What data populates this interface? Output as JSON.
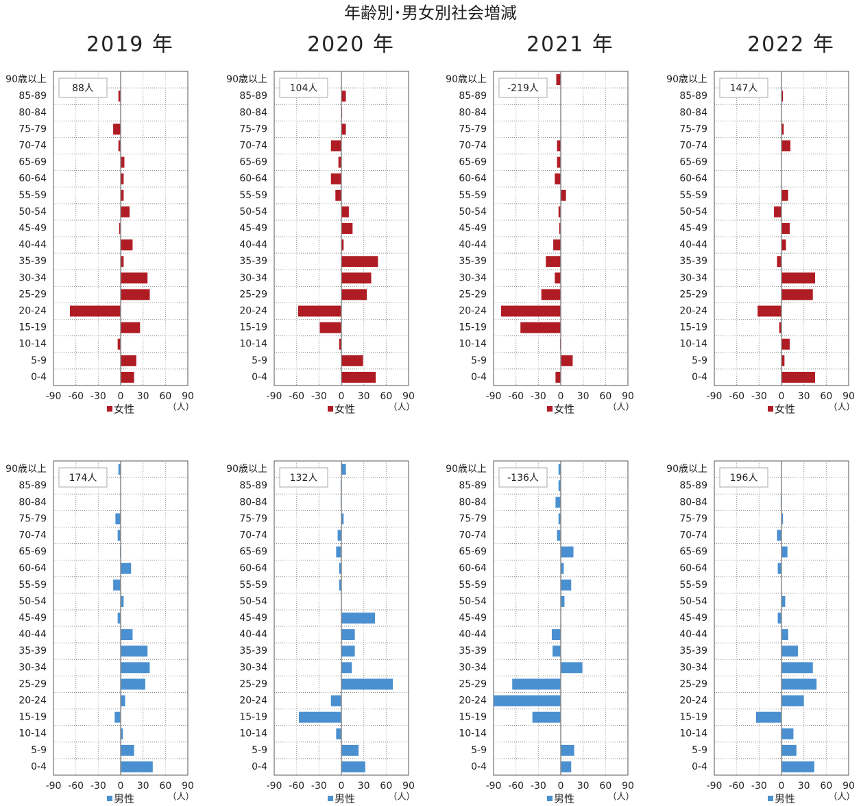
{
  "title": "年齢別･男女別社会増減",
  "chart_data": [
    {
      "type": "bar",
      "orientation": "horizontal",
      "subtitle": "2019 年",
      "annotation": "88人",
      "unit_label": "（人）",
      "categories": [
        "90歳以上",
        "85-89",
        "80-84",
        "75-79",
        "70-74",
        "65-69",
        "60-64",
        "55-59",
        "50-54",
        "45-49",
        "40-44",
        "35-39",
        "30-34",
        "25-29",
        "20-24",
        "15-19",
        "10-14",
        "5-9",
        "0-4"
      ],
      "series": [
        {
          "name": "女性",
          "color": "#b01c24",
          "values": [
            0,
            -3,
            0,
            -10,
            -3,
            5,
            4,
            4,
            12,
            -2,
            16,
            4,
            36,
            39,
            -68,
            26,
            -4,
            21,
            18
          ]
        }
      ],
      "xlim": [
        -90,
        90
      ],
      "xticks": [
        -90,
        -60,
        -30,
        0,
        30,
        60,
        90
      ],
      "grid": true
    },
    {
      "type": "bar",
      "orientation": "horizontal",
      "subtitle": "2020 年",
      "annotation": "104人",
      "unit_label": "（人）",
      "categories": [
        "90歳以上",
        "85-89",
        "80-84",
        "75-79",
        "70-74",
        "65-69",
        "60-64",
        "55-59",
        "50-54",
        "45-49",
        "40-44",
        "35-39",
        "30-34",
        "25-29",
        "20-24",
        "15-19",
        "10-14",
        "5-9",
        "0-4"
      ],
      "series": [
        {
          "name": "女性",
          "color": "#b01c24",
          "values": [
            0,
            6,
            1,
            6,
            -14,
            -4,
            -14,
            -8,
            10,
            15,
            3,
            49,
            40,
            34,
            -58,
            -29,
            -3,
            29,
            46
          ]
        }
      ],
      "xlim": [
        -90,
        90
      ],
      "xticks": [
        -90,
        -60,
        -30,
        0,
        30,
        60,
        90
      ],
      "grid": true
    },
    {
      "type": "bar",
      "orientation": "horizontal",
      "subtitle": "2021 年",
      "annotation": "-219人",
      "unit_label": "（人）",
      "categories": [
        "90歳以上",
        "85-89",
        "80-84",
        "75-79",
        "70-74",
        "65-69",
        "60-64",
        "55-59",
        "50-54",
        "45-49",
        "40-44",
        "35-39",
        "30-34",
        "25-29",
        "20-24",
        "15-19",
        "10-14",
        "5-9",
        "0-4"
      ],
      "series": [
        {
          "name": "女性",
          "color": "#b01c24",
          "values": [
            -6,
            0,
            0,
            0,
            -5,
            -5,
            -8,
            7,
            -3,
            -2,
            -10,
            -20,
            -8,
            -26,
            -80,
            -54,
            -1,
            16,
            -7
          ]
        }
      ],
      "xlim": [
        -90,
        90
      ],
      "xticks": [
        -90,
        -60,
        -30,
        0,
        30,
        60,
        90
      ],
      "grid": true
    },
    {
      "type": "bar",
      "orientation": "horizontal",
      "subtitle": "2022 年",
      "annotation": "147人",
      "unit_label": "（人）",
      "categories": [
        "90歳以上",
        "85-89",
        "80-84",
        "75-79",
        "70-74",
        "65-69",
        "60-64",
        "55-59",
        "50-54",
        "45-49",
        "40-44",
        "35-39",
        "30-34",
        "25-29",
        "20-24",
        "15-19",
        "10-14",
        "5-9",
        "0-4"
      ],
      "series": [
        {
          "name": "女性",
          "color": "#b01c24",
          "values": [
            0,
            2,
            0,
            3,
            12,
            0,
            0,
            9,
            -10,
            11,
            6,
            -6,
            45,
            42,
            -32,
            -3,
            11,
            4,
            45
          ]
        }
      ],
      "xlim": [
        -90,
        90
      ],
      "xticks": [
        -90,
        -60,
        -30,
        0,
        30,
        60,
        90
      ],
      "grid": true
    },
    {
      "type": "bar",
      "orientation": "horizontal",
      "annotation": "174人",
      "unit_label": "（人）",
      "categories": [
        "90歳以上",
        "85-89",
        "80-84",
        "75-79",
        "70-74",
        "65-69",
        "60-64",
        "55-59",
        "50-54",
        "45-49",
        "40-44",
        "35-39",
        "30-34",
        "25-29",
        "20-24",
        "15-19",
        "10-14",
        "5-9",
        "0-4"
      ],
      "series": [
        {
          "name": "男性",
          "color": "#4a90d0",
          "values": [
            -3,
            0,
            0,
            -7,
            -4,
            -1,
            14,
            -10,
            4,
            -4,
            16,
            36,
            39,
            33,
            6,
            -8,
            3,
            18,
            43
          ]
        }
      ],
      "xlim": [
        -90,
        90
      ],
      "xticks": [
        -90,
        -60,
        -30,
        0,
        30,
        60,
        90
      ],
      "grid": true
    },
    {
      "type": "bar",
      "orientation": "horizontal",
      "annotation": "132人",
      "unit_label": "（人）",
      "categories": [
        "90歳以上",
        "85-89",
        "80-84",
        "75-79",
        "70-74",
        "65-69",
        "60-64",
        "55-59",
        "50-54",
        "45-49",
        "40-44",
        "35-39",
        "30-34",
        "25-29",
        "20-24",
        "15-19",
        "10-14",
        "5-9",
        "0-4"
      ],
      "series": [
        {
          "name": "男性",
          "color": "#4a90d0",
          "values": [
            6,
            -1,
            -1,
            3,
            -5,
            -7,
            -3,
            -3,
            0,
            45,
            18,
            18,
            14,
            69,
            -14,
            -57,
            -7,
            23,
            32
          ]
        }
      ],
      "xlim": [
        -90,
        90
      ],
      "xticks": [
        -90,
        -60,
        -30,
        0,
        30,
        60,
        90
      ],
      "grid": true
    },
    {
      "type": "bar",
      "orientation": "horizontal",
      "annotation": "-136人",
      "unit_label": "（人）",
      "categories": [
        "90歳以上",
        "85-89",
        "80-84",
        "75-79",
        "70-74",
        "65-69",
        "60-64",
        "55-59",
        "50-54",
        "45-49",
        "40-44",
        "35-39",
        "30-34",
        "25-29",
        "20-24",
        "15-19",
        "10-14",
        "5-9",
        "0-4"
      ],
      "series": [
        {
          "name": "男性",
          "color": "#4a90d0",
          "values": [
            -3,
            -3,
            -7,
            -3,
            -5,
            17,
            4,
            14,
            5,
            0,
            -12,
            -11,
            29,
            -65,
            -90,
            -38,
            0,
            18,
            14
          ]
        }
      ],
      "xlim": [
        -90,
        90
      ],
      "xticks": [
        -90,
        -60,
        -30,
        0,
        30,
        60,
        90
      ],
      "grid": true
    },
    {
      "type": "bar",
      "orientation": "horizontal",
      "annotation": "196人",
      "unit_label": "（人）",
      "categories": [
        "90歳以上",
        "85-89",
        "80-84",
        "75-79",
        "70-74",
        "65-69",
        "60-64",
        "55-59",
        "50-54",
        "45-49",
        "40-44",
        "35-39",
        "30-34",
        "25-29",
        "20-24",
        "15-19",
        "10-14",
        "5-9",
        "0-4"
      ],
      "series": [
        {
          "name": "男性",
          "color": "#4a90d0",
          "values": [
            0,
            0,
            -1,
            2,
            -6,
            8,
            -5,
            0,
            5,
            -5,
            9,
            22,
            42,
            47,
            30,
            -34,
            16,
            20,
            44
          ]
        }
      ],
      "xlim": [
        -90,
        90
      ],
      "xticks": [
        -90,
        -60,
        -30,
        0,
        30,
        60,
        90
      ],
      "grid": true
    }
  ]
}
